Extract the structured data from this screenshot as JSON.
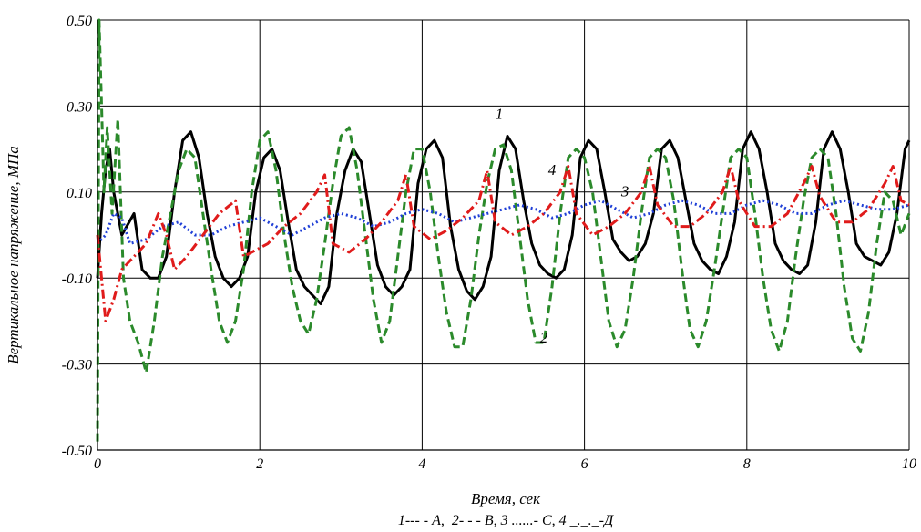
{
  "chart_data": {
    "type": "line",
    "xlabel": "Время, сек",
    "ylabel": "Вертикальное напряжение, МПа",
    "legend_caption": "1--- - А,  2- - - В, 3 ......- С, 4 _._._-Д",
    "xlim": [
      0,
      10
    ],
    "ylim": [
      -0.5,
      0.5
    ],
    "x_ticks": [
      0,
      2,
      4,
      6,
      8,
      10
    ],
    "x_tick_labels": [
      "0",
      "2",
      "4",
      "6",
      "8",
      "10"
    ],
    "y_ticks": [
      -0.5,
      -0.3,
      -0.1,
      0.1,
      0.3,
      0.5
    ],
    "y_tick_labels": [
      "-0.50",
      "-0.30",
      "-0.10",
      "0.10",
      "0.30",
      "0.50"
    ],
    "grid": true,
    "series": [
      {
        "name": "1",
        "color": "#000000",
        "style": "solid",
        "x": [
          0,
          0.05,
          0.1,
          0.15,
          0.2,
          0.3,
          0.45,
          0.55,
          0.65,
          0.75,
          0.85,
          0.95,
          1.05,
          1.15,
          1.25,
          1.35,
          1.45,
          1.55,
          1.65,
          1.75,
          1.85,
          1.95,
          2.05,
          2.15,
          2.25,
          2.35,
          2.45,
          2.55,
          2.65,
          2.75,
          2.85,
          2.95,
          3.05,
          3.15,
          3.25,
          3.35,
          3.45,
          3.55,
          3.65,
          3.75,
          3.85,
          3.95,
          4.05,
          4.15,
          4.25,
          4.35,
          4.45,
          4.55,
          4.65,
          4.75,
          4.85,
          4.95,
          5.05,
          5.15,
          5.25,
          5.35,
          5.45,
          5.55,
          5.65,
          5.75,
          5.85,
          5.95,
          6.05,
          6.15,
          6.25,
          6.35,
          6.45,
          6.55,
          6.65,
          6.75,
          6.85,
          6.95,
          7.05,
          7.15,
          7.25,
          7.35,
          7.45,
          7.55,
          7.65,
          7.75,
          7.85,
          7.95,
          8.05,
          8.15,
          8.25,
          8.35,
          8.45,
          8.55,
          8.65,
          8.75,
          8.85,
          8.95,
          9.05,
          9.15,
          9.25,
          9.35,
          9.45,
          9.55,
          9.65,
          9.75,
          9.85,
          9.95,
          10
        ],
        "y": [
          -0.1,
          0.05,
          0.15,
          0.2,
          0.1,
          0.0,
          0.05,
          -0.08,
          -0.1,
          -0.1,
          -0.05,
          0.1,
          0.22,
          0.24,
          0.18,
          0.05,
          -0.05,
          -0.1,
          -0.12,
          -0.1,
          -0.05,
          0.1,
          0.18,
          0.2,
          0.15,
          0.03,
          -0.08,
          -0.12,
          -0.14,
          -0.16,
          -0.12,
          0.05,
          0.15,
          0.2,
          0.17,
          0.05,
          -0.07,
          -0.12,
          -0.14,
          -0.12,
          -0.08,
          0.12,
          0.2,
          0.22,
          0.18,
          0.02,
          -0.08,
          -0.13,
          -0.15,
          -0.12,
          -0.05,
          0.15,
          0.23,
          0.2,
          0.08,
          -0.02,
          -0.07,
          -0.09,
          -0.1,
          -0.08,
          0.0,
          0.18,
          0.22,
          0.2,
          0.1,
          -0.01,
          -0.04,
          -0.06,
          -0.05,
          -0.02,
          0.05,
          0.2,
          0.22,
          0.18,
          0.08,
          -0.02,
          -0.06,
          -0.08,
          -0.09,
          -0.05,
          0.03,
          0.2,
          0.24,
          0.2,
          0.1,
          -0.02,
          -0.06,
          -0.08,
          -0.09,
          -0.07,
          0.03,
          0.2,
          0.24,
          0.2,
          0.1,
          -0.02,
          -0.05,
          -0.06,
          -0.07,
          -0.04,
          0.05,
          0.2,
          0.22
        ]
      },
      {
        "name": "2",
        "color": "#2b8a2b",
        "style": "dashed",
        "x": [
          0,
          0.02,
          0.05,
          0.08,
          0.12,
          0.18,
          0.25,
          0.32,
          0.4,
          0.5,
          0.6,
          0.7,
          0.8,
          0.9,
          1.0,
          1.1,
          1.2,
          1.3,
          1.4,
          1.5,
          1.6,
          1.7,
          1.8,
          1.9,
          2.0,
          2.1,
          2.2,
          2.3,
          2.4,
          2.5,
          2.6,
          2.7,
          2.8,
          2.9,
          3.0,
          3.1,
          3.2,
          3.3,
          3.4,
          3.5,
          3.6,
          3.7,
          3.8,
          3.9,
          4.0,
          4.1,
          4.2,
          4.3,
          4.4,
          4.5,
          4.6,
          4.7,
          4.8,
          4.9,
          5.0,
          5.1,
          5.2,
          5.3,
          5.4,
          5.5,
          5.6,
          5.7,
          5.8,
          5.9,
          6.0,
          6.1,
          6.2,
          6.3,
          6.4,
          6.5,
          6.6,
          6.7,
          6.8,
          6.9,
          7.0,
          7.1,
          7.2,
          7.3,
          7.4,
          7.5,
          7.6,
          7.7,
          7.8,
          7.9,
          8.0,
          8.1,
          8.2,
          8.3,
          8.4,
          8.5,
          8.6,
          8.7,
          8.8,
          8.9,
          9.0,
          9.1,
          9.2,
          9.3,
          9.4,
          9.5,
          9.6,
          9.7,
          9.8,
          9.9,
          10.0
        ],
        "y": [
          -0.48,
          0.5,
          0.3,
          0.1,
          0.25,
          0.05,
          0.27,
          -0.1,
          -0.2,
          -0.25,
          -0.32,
          -0.2,
          -0.05,
          0.05,
          0.15,
          0.2,
          0.18,
          0.05,
          -0.08,
          -0.2,
          -0.25,
          -0.2,
          -0.08,
          0.1,
          0.22,
          0.24,
          0.15,
          0.0,
          -0.12,
          -0.2,
          -0.23,
          -0.15,
          -0.02,
          0.12,
          0.23,
          0.25,
          0.15,
          0.0,
          -0.15,
          -0.25,
          -0.2,
          -0.05,
          0.1,
          0.2,
          0.2,
          0.1,
          -0.05,
          -0.18,
          -0.26,
          -0.26,
          -0.15,
          0.0,
          0.12,
          0.2,
          0.21,
          0.15,
          0.0,
          -0.15,
          -0.25,
          -0.25,
          -0.12,
          0.05,
          0.18,
          0.2,
          0.18,
          0.1,
          -0.05,
          -0.2,
          -0.26,
          -0.22,
          -0.1,
          0.05,
          0.18,
          0.2,
          0.18,
          0.08,
          -0.08,
          -0.22,
          -0.26,
          -0.2,
          -0.08,
          0.05,
          0.18,
          0.2,
          0.18,
          0.05,
          -0.1,
          -0.22,
          -0.27,
          -0.2,
          -0.05,
          0.08,
          0.18,
          0.2,
          0.18,
          0.05,
          -0.12,
          -0.24,
          -0.27,
          -0.18,
          -0.02,
          0.1,
          0.08,
          0.0,
          0.05
        ]
      },
      {
        "name": "3",
        "color": "#1f3fd6",
        "style": "dotted",
        "x": [
          0,
          0.1,
          0.2,
          0.3,
          0.4,
          0.6,
          0.8,
          1.0,
          1.2,
          1.4,
          1.6,
          1.8,
          2.0,
          2.2,
          2.4,
          2.6,
          2.8,
          3.0,
          3.2,
          3.4,
          3.6,
          3.8,
          4.0,
          4.2,
          4.4,
          4.6,
          4.8,
          5.0,
          5.2,
          5.4,
          5.6,
          5.8,
          6.0,
          6.2,
          6.4,
          6.6,
          6.8,
          7.0,
          7.2,
          7.4,
          7.6,
          7.8,
          8.0,
          8.2,
          8.4,
          8.6,
          8.8,
          9.0,
          9.2,
          9.4,
          9.6,
          9.8,
          10.0
        ],
        "y": [
          -0.02,
          0.0,
          0.05,
          0.04,
          -0.02,
          -0.01,
          0.02,
          0.03,
          0.0,
          0.0,
          0.02,
          0.03,
          0.04,
          0.02,
          0.0,
          0.02,
          0.04,
          0.05,
          0.04,
          0.02,
          0.03,
          0.05,
          0.06,
          0.05,
          0.03,
          0.04,
          0.05,
          0.06,
          0.07,
          0.06,
          0.04,
          0.05,
          0.07,
          0.08,
          0.06,
          0.04,
          0.05,
          0.07,
          0.08,
          0.07,
          0.05,
          0.05,
          0.07,
          0.08,
          0.07,
          0.05,
          0.05,
          0.07,
          0.08,
          0.07,
          0.06,
          0.06,
          0.07
        ]
      },
      {
        "name": "4",
        "color": "#e01b1b",
        "style": "dashdot",
        "x": [
          0,
          0.1,
          0.2,
          0.3,
          0.45,
          0.6,
          0.75,
          0.85,
          0.95,
          1.1,
          1.3,
          1.5,
          1.7,
          1.8,
          1.9,
          2.1,
          2.3,
          2.5,
          2.7,
          2.8,
          2.9,
          3.1,
          3.3,
          3.5,
          3.7,
          3.8,
          3.9,
          4.1,
          4.3,
          4.5,
          4.7,
          4.8,
          4.9,
          5.1,
          5.3,
          5.5,
          5.7,
          5.8,
          5.9,
          6.1,
          6.3,
          6.5,
          6.7,
          6.8,
          6.9,
          7.1,
          7.3,
          7.5,
          7.7,
          7.8,
          7.9,
          8.1,
          8.3,
          8.5,
          8.7,
          8.8,
          8.9,
          9.1,
          9.3,
          9.5,
          9.7,
          9.8,
          9.9,
          10.0
        ],
        "y": [
          0.0,
          -0.2,
          -0.15,
          -0.08,
          -0.05,
          -0.02,
          0.05,
          0.0,
          -0.08,
          -0.05,
          0.0,
          0.05,
          0.08,
          -0.05,
          -0.04,
          -0.02,
          0.02,
          0.05,
          0.1,
          0.14,
          -0.02,
          -0.04,
          -0.01,
          0.03,
          0.08,
          0.14,
          0.02,
          -0.01,
          0.01,
          0.04,
          0.08,
          0.15,
          0.03,
          0.0,
          0.02,
          0.05,
          0.1,
          0.16,
          0.05,
          0.0,
          0.02,
          0.05,
          0.1,
          0.16,
          0.07,
          0.02,
          0.02,
          0.05,
          0.1,
          0.16,
          0.08,
          0.02,
          0.02,
          0.05,
          0.12,
          0.16,
          0.09,
          0.03,
          0.03,
          0.06,
          0.12,
          0.16,
          0.08,
          0.07
        ]
      }
    ],
    "annotations": [
      {
        "text": "1",
        "x": 4.95,
        "y": 0.27
      },
      {
        "text": "2",
        "x": 5.5,
        "y": -0.25
      },
      {
        "text": "3",
        "x": 6.5,
        "y": 0.09
      },
      {
        "text": "4",
        "x": 5.6,
        "y": 0.14
      }
    ]
  }
}
